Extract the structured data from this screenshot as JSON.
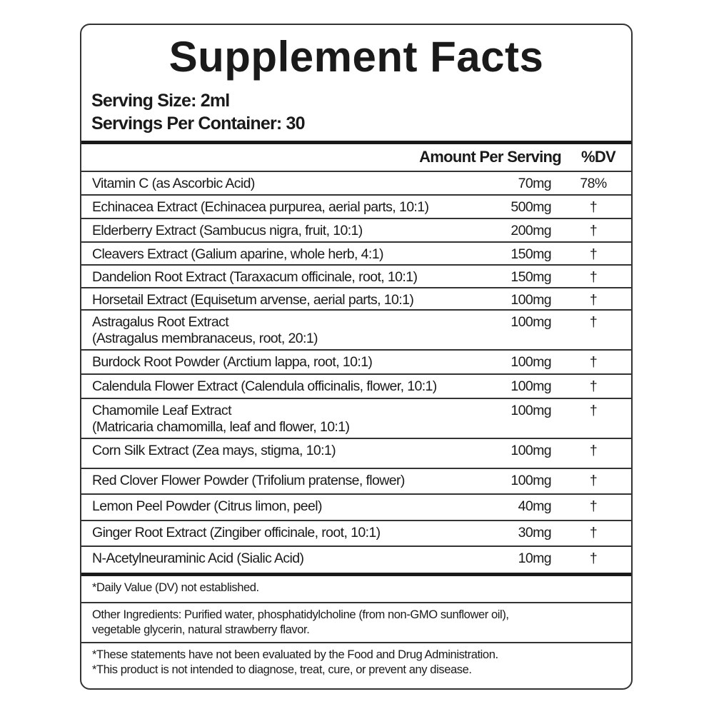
{
  "title": "Supplement Facts",
  "serving_size": "Serving Size: 2ml",
  "servings_per_container": "Servings Per Container: 30",
  "header": {
    "amount": "Amount Per Serving",
    "dv": "%DV"
  },
  "rows": [
    {
      "name": "Vitamin C (as Ascorbic Acid)",
      "amount": "70mg",
      "dv": "78%"
    },
    {
      "name": "Echinacea Extract (Echinacea purpurea, aerial parts, 10:1)",
      "amount": "500mg",
      "dv": "†"
    },
    {
      "name": "Elderberry Extract (Sambucus nigra, fruit, 10:1)",
      "amount": "200mg",
      "dv": "†"
    },
    {
      "name": "Cleavers Extract (Galium aparine, whole herb, 4:1)",
      "amount": "150mg",
      "dv": "†"
    },
    {
      "name": "Dandelion Root Extract (Taraxacum officinale, root, 10:1)",
      "amount": "150mg",
      "dv": "†"
    },
    {
      "name": "Horsetail Extract (Equisetum arvense, aerial parts, 10:1)",
      "amount": "100mg",
      "dv": "†"
    },
    {
      "name": "Astragalus Root Extract",
      "name2": "(Astragalus membranaceus, root, 20:1)",
      "amount": "100mg",
      "dv": "†"
    },
    {
      "name": "Burdock Root Powder (Arctium lappa, root, 10:1)",
      "amount": "100mg",
      "dv": "†"
    },
    {
      "name": "Calendula Flower Extract (Calendula officinalis, flower, 10:1)",
      "amount": "100mg",
      "dv": "†"
    },
    {
      "name": "Chamomile Leaf Extract",
      "name2": "(Matricaria chamomilla, leaf and flower, 10:1)",
      "amount": "100mg",
      "dv": "†"
    },
    {
      "name": "Corn Silk Extract (Zea mays, stigma, 10:1)",
      "amount": "100mg",
      "dv": "†"
    },
    {
      "name": "Red Clover Flower Powder (Trifolium pratense, flower)",
      "amount": "100mg",
      "dv": "†"
    },
    {
      "name": "Lemon Peel Powder (Citrus limon, peel)",
      "amount": "40mg",
      "dv": "†"
    },
    {
      "name": "Ginger Root Extract (Zingiber officinale, root, 10:1)",
      "amount": "30mg",
      "dv": "†"
    },
    {
      "name": "N-Acetylneuraminic Acid (Sialic Acid)",
      "amount": "10mg",
      "dv": "†"
    }
  ],
  "footnote": "*Daily Value (DV) not established.",
  "other_ingredients": {
    "line1": "Other Ingredients: Purified water, phosphatidylcholine (from non-GMO sunflower oil),",
    "line2": "vegetable glycerin, natural strawberry flavor."
  },
  "disclaimer": {
    "line1": "*These statements have not been evaluated by the Food and Drug Administration.",
    "line2": "*This product is not intended to diagnose, treat, cure, or prevent any disease."
  }
}
